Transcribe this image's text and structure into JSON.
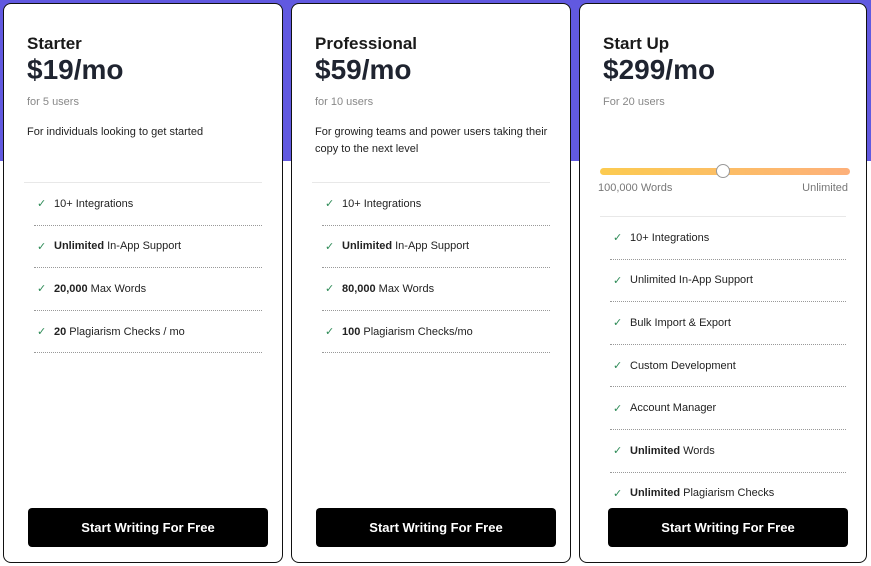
{
  "colors": {
    "background_band": "#6159e0",
    "button": "#000000",
    "check": "#2e8b57",
    "slider_start": "#fccb50",
    "slider_end": "#fdb07a"
  },
  "plans": [
    {
      "name": "Starter",
      "price": "$19/mo",
      "users": "for 5 users",
      "description": "For individuals looking to get started",
      "button": "Start Writing For Free",
      "features": [
        {
          "bold": "",
          "text": "10+ Integrations"
        },
        {
          "bold": "Unlimited",
          "text": "In-App Support"
        },
        {
          "bold": "20,000",
          "text": "Max Words"
        },
        {
          "bold": "20",
          "text": "Plagiarism Checks / mo"
        }
      ]
    },
    {
      "name": "Professional",
      "price": "$59/mo",
      "users": "for 10 users",
      "description": "For growing teams and power users taking their copy to the next level",
      "button": "Start Writing For Free",
      "features": [
        {
          "bold": "",
          "text": "10+ Integrations"
        },
        {
          "bold": "Unlimited",
          "text": "In-App Support"
        },
        {
          "bold": "80,000",
          "text": "Max Words"
        },
        {
          "bold": "100",
          "text": "Plagiarism Checks/mo"
        }
      ]
    },
    {
      "name": "Start Up",
      "price": "$299/mo",
      "users": "For 20 users",
      "button": "Start Writing For Free",
      "slider": {
        "min_label": "100,000 Words",
        "max_label": "Unlimited",
        "value_percent": 49
      },
      "features": [
        {
          "bold": "",
          "text": "10+ Integrations"
        },
        {
          "bold": "",
          "text": "Unlimited In-App Support"
        },
        {
          "bold": "",
          "text": "Bulk Import & Export"
        },
        {
          "bold": "",
          "text": "Custom Development"
        },
        {
          "bold": "",
          "text": "Account Manager"
        },
        {
          "bold": "Unlimited",
          "text": "Words"
        },
        {
          "bold": "Unlimited",
          "text": "Plagiarism Checks"
        }
      ]
    }
  ]
}
